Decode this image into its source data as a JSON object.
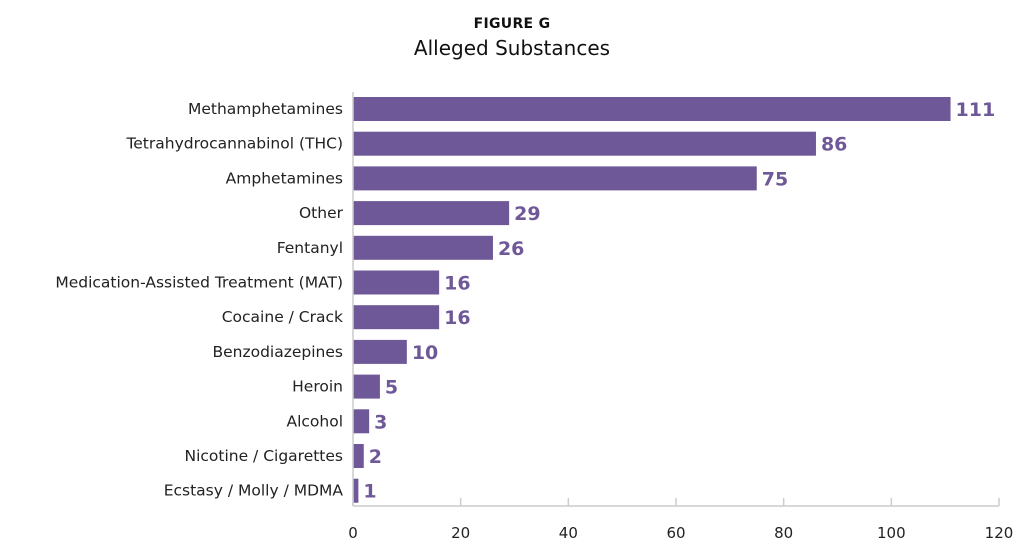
{
  "chart_data": {
    "type": "bar",
    "orientation": "horizontal",
    "figure_label": "FIGURE G",
    "title": "Alleged Substances",
    "xlabel": "",
    "ylabel": "",
    "categories": [
      "Methamphetamines",
      "Tetrahydrocannabinol (THC)",
      "Amphetamines",
      "Other",
      "Fentanyl",
      "Medication-Assisted Treatment (MAT)",
      "Cocaine / Crack",
      "Benzodiazepines",
      "Heroin",
      "Alcohol",
      "Nicotine / Cigarettes",
      "Ecstasy / Molly / MDMA"
    ],
    "values": [
      111,
      86,
      75,
      29,
      26,
      16,
      16,
      10,
      5,
      3,
      2,
      1
    ],
    "xlim": [
      0,
      120
    ],
    "xticks": [
      0,
      20,
      40,
      60,
      80,
      100,
      120
    ],
    "grid": false,
    "bar_color": "#6f5898",
    "label_color": "#6f5898"
  }
}
